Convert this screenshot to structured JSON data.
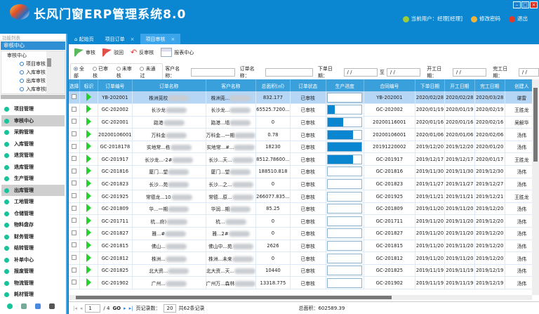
{
  "app": {
    "title": "长风门窗ERP管理系统8.0",
    "current_user": "当前用户：经理[经理]",
    "change_password": "修改密码",
    "logout": "退出"
  },
  "sidebar": {
    "function_list": "功能列表",
    "section": "审核中心",
    "tree": {
      "root": "审核中心",
      "items": [
        "项目审核",
        "入库审核",
        "出库审核",
        "入库审核回退"
      ]
    },
    "modules": [
      {
        "label": "项目管理"
      },
      {
        "label": "审核中心",
        "selected": true
      },
      {
        "label": "采购管理"
      },
      {
        "label": "入库管理"
      },
      {
        "label": "退货管理"
      },
      {
        "label": "退库管理"
      },
      {
        "label": "生产管理"
      },
      {
        "label": "出库管理",
        "selected": true
      },
      {
        "label": "工地管理"
      },
      {
        "label": "仓储管理"
      },
      {
        "label": "物料盘存"
      },
      {
        "label": "财务管理"
      },
      {
        "label": "结转管理"
      },
      {
        "label": "补单中心"
      },
      {
        "label": "报废管理"
      },
      {
        "label": "物流管理"
      },
      {
        "label": "耗材管理"
      }
    ]
  },
  "tabs": [
    {
      "label": "起始页"
    },
    {
      "label": "项目订单",
      "close": "×"
    },
    {
      "label": "项目审核",
      "close": "×",
      "active": true
    }
  ],
  "toolbar": {
    "approve": "审核",
    "reject": "驳回",
    "unapprove": "反审核",
    "report": "报表中心"
  },
  "filter": {
    "radios": [
      "全部",
      "已审核",
      "未审核",
      "未通过"
    ],
    "selected": "全部",
    "customer_label": "客户名称：",
    "customer_value": "",
    "order_label": "订单名称：",
    "order_value": "",
    "order_date_label": "下单日期：",
    "date_placeholder": "/  /",
    "to_label": "至",
    "start_date_label": "开工日期：",
    "finish_date_label": "完工日期："
  },
  "table": {
    "columns": [
      "选择",
      "标识",
      "订单编号",
      "订单名称",
      "客户名称",
      "总面积(㎡)",
      "订单状态",
      "生产进度",
      "合同编号",
      "下单日期",
      "开工日期",
      "完工日期",
      "创建人"
    ],
    "rows": [
      {
        "id": "YB-202001",
        "name": "株洲莞校",
        "customer": "株洲莞...",
        "area": "832.177",
        "status": "已审核",
        "progress": 0,
        "contract": "YB-202001",
        "order": "2020/02/28",
        "start": "2020/02/28",
        "finish": "2020/03/28",
        "creator": "谌雷"
      },
      {
        "id": "GC-202002",
        "name": "长沙龙",
        "customer": "长沙龙...",
        "area": "65525.7200...",
        "status": "已审核",
        "progress": 0.2,
        "contract": "GC-202002",
        "order": "2020/01/19",
        "start": "2020/01/19",
        "finish": "2020/02/19",
        "creator": "王胜龙"
      },
      {
        "id": "GC-202001",
        "name": "路港",
        "customer": "路港...墙",
        "area": "0",
        "status": "已审核",
        "progress": 0.45,
        "contract": "20200116001",
        "order": "2020/01/16",
        "start": "2020/01/16",
        "finish": "2020/02/16",
        "creator": "吴解华"
      },
      {
        "id": "20200106001",
        "name": "万科金",
        "customer": "万科金...一期",
        "area": "0.78",
        "status": "已审核",
        "progress": 0.75,
        "contract": "20200106001",
        "order": "2020/01/06",
        "start": "2020/01/06",
        "finish": "2020/02/06",
        "creator": "汤伟"
      },
      {
        "id": "GC-2018178",
        "name": "实地常...栋",
        "customer": "实地常...#...",
        "area": "18230",
        "status": "已审核",
        "progress": 1,
        "contract": "20191220002",
        "order": "2019/12/20",
        "start": "2019/12/20",
        "finish": "2020/01/20",
        "creator": "汤伟"
      },
      {
        "id": "GC-201917",
        "name": "长沙龙...-2#",
        "customer": "长沙...天...",
        "area": "8512.78600...",
        "status": "已审核",
        "progress": 0.75,
        "contract": "GC-201917",
        "order": "2019/12/17",
        "start": "2019/12/17",
        "finish": "2020/01/17",
        "creator": "王胜龙"
      },
      {
        "id": "GC-201816",
        "name": "厦门...望",
        "customer": "厦门...望",
        "area": "188510.818",
        "status": "已审核",
        "progress": 0,
        "contract": "GC-201816",
        "order": "2019/11/30",
        "start": "2019/11/30",
        "finish": "2019/12/30",
        "creator": "汤伟"
      },
      {
        "id": "GC-201823",
        "name": "长沙...苑",
        "customer": "长沙...之...",
        "area": "0",
        "status": "已审核",
        "progress": 0,
        "contract": "GC-201823",
        "order": "2019/11/27",
        "start": "2019/11/27",
        "finish": "2019/12/27",
        "creator": "汤伟"
      },
      {
        "id": "GC-201925",
        "name": "常德龙...10",
        "customer": "常德...原...",
        "area": "266077.835...",
        "status": "已审核",
        "progress": 0,
        "contract": "GC-201925",
        "order": "2019/11/21",
        "start": "2019/11/21",
        "finish": "2019/12/21",
        "creator": "王胜龙"
      },
      {
        "id": "GC-201809",
        "name": "华...一期",
        "customer": "华润...期",
        "area": "85.25",
        "status": "已审核",
        "progress": 0,
        "contract": "GC-201809",
        "order": "2019/11/20",
        "start": "2019/11/20",
        "finish": "2019/12/20",
        "creator": "汤伟"
      },
      {
        "id": "GC-201711",
        "name": "杭...府)",
        "customer": "杭...",
        "area": "0",
        "status": "已审核",
        "progress": 0,
        "contract": "GC-201711",
        "order": "2019/11/20",
        "start": "2019/11/20",
        "finish": "2019/12/20",
        "creator": "汤伟"
      },
      {
        "id": "GC-201827",
        "name": "雅...#",
        "customer": "雅...2#",
        "area": "0",
        "status": "已审核",
        "progress": 0,
        "contract": "GC-201827",
        "order": "2019/11/20",
        "start": "2019/11/20",
        "finish": "2019/12/20",
        "creator": "汤伟"
      },
      {
        "id": "GC-201815",
        "name": "佛山...",
        "customer": "佛山中...苑",
        "area": "2626",
        "status": "已审核",
        "progress": 0,
        "contract": "GC-201815",
        "order": "2019/11/20",
        "start": "2019/11/20",
        "finish": "2019/12/20",
        "creator": "汤伟"
      },
      {
        "id": "GC-201812",
        "name": "株洲...",
        "customer": "株洲...未来",
        "area": "0",
        "status": "已审核",
        "progress": 0,
        "contract": "GC-201812",
        "order": "2019/11/20",
        "start": "2019/11/20",
        "finish": "2019/12/20",
        "creator": "汤伟"
      },
      {
        "id": "GC-201825",
        "name": "北大资...",
        "customer": "北大资...天...",
        "area": "10440",
        "status": "已审核",
        "progress": 0,
        "contract": "GC-201825",
        "order": "2019/11/19",
        "start": "2019/11/19",
        "finish": "2019/12/19",
        "creator": "汤伟"
      },
      {
        "id": "GC-201902",
        "name": "广州...",
        "customer": "广州万...森林",
        "area": "13318.775",
        "status": "已审核",
        "progress": 0,
        "contract": "GC-201902",
        "order": "2019/11/19",
        "start": "2019/11/19",
        "finish": "2019/12/19",
        "creator": "汤伟"
      }
    ]
  },
  "pager": {
    "page": "1",
    "total_pages": "/ 4",
    "go": "GO",
    "page_size_label": "页记录数：",
    "page_size": "20",
    "total": "共62条记录",
    "total_area": "总面积：602589.39"
  },
  "colors": {
    "brand": "#0b87d2",
    "header": "#3aa0dc",
    "progress": "#0a86d0",
    "flag_icon": "#22d32a"
  }
}
